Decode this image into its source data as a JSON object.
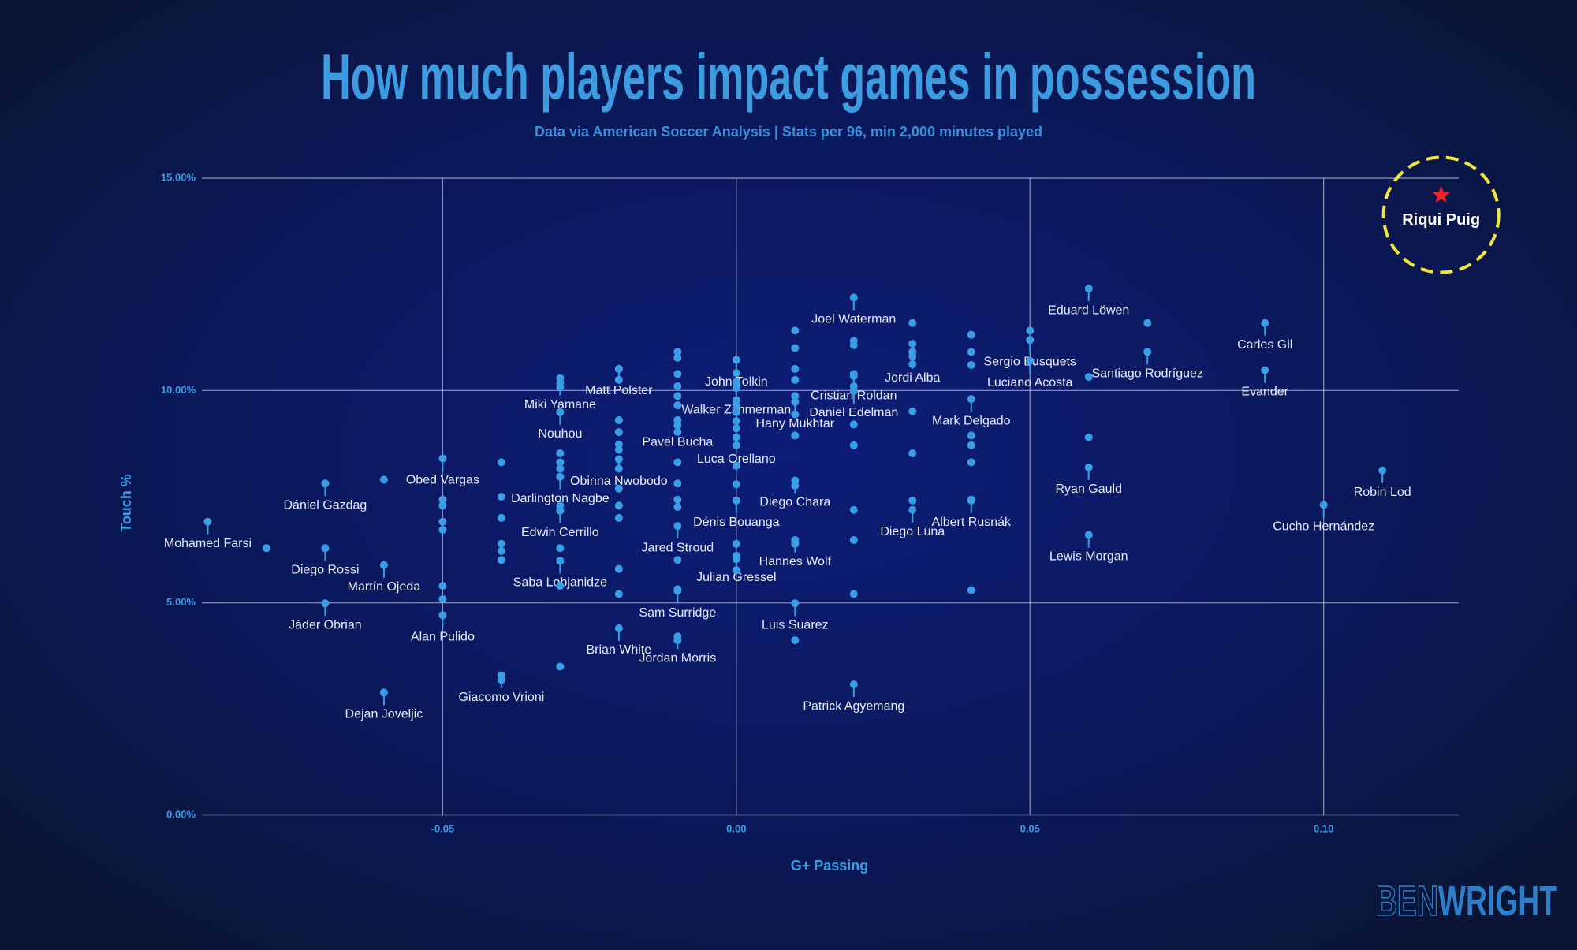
{
  "chart_data": {
    "type": "scatter",
    "title": "How much players impact games in possession",
    "subtitle": "Data via American Soccer Analysis | Stats per 96, min 2,000 minutes played",
    "x_label": "G+ Passing",
    "y_label": "Touch %",
    "color": "#3a9ee6",
    "xlim": [
      -0.091,
      0.123
    ],
    "ylim": [
      0,
      15
    ],
    "xticks": [
      {
        "value": -0.05,
        "label": "-0.05"
      },
      {
        "value": 0,
        "label": "0.00"
      },
      {
        "value": 0.05,
        "label": "0.05"
      },
      {
        "value": 0.1,
        "label": "0.10"
      }
    ],
    "yticks": [
      {
        "value": 0,
        "label": "0.00%"
      },
      {
        "value": 5,
        "label": "5.00%"
      },
      {
        "value": 10,
        "label": "10.00%"
      },
      {
        "value": 15,
        "label": "15.00%"
      }
    ],
    "grid": true,
    "x": [
      -0.09,
      -0.07,
      -0.07,
      -0.07,
      -0.06,
      -0.05,
      -0.06,
      -0.05,
      -0.04,
      -0.03,
      -0.03,
      -0.03,
      -0.03,
      -0.03,
      -0.02,
      -0.02,
      -0.02,
      -0.01,
      -0.01,
      -0.01,
      -0.01,
      0,
      0,
      0,
      0,
      0,
      0.01,
      0.01,
      0.01,
      0.01,
      0.02,
      0.02,
      0.02,
      0.02,
      0.03,
      0.03,
      0.04,
      0.04,
      0.05,
      0.05,
      0.06,
      0.07,
      0.06,
      0.06,
      0.09,
      0.09,
      0.11,
      0.1,
      -0.08,
      -0.06,
      -0.05,
      -0.05,
      -0.05,
      -0.05,
      -0.05,
      -0.05,
      -0.04,
      -0.04,
      -0.04,
      -0.04,
      -0.04,
      -0.04,
      -0.04,
      -0.03,
      -0.03,
      -0.03,
      -0.03,
      -0.03,
      -0.03,
      -0.03,
      -0.03,
      -0.03,
      -0.02,
      -0.02,
      -0.02,
      -0.02,
      -0.02,
      -0.02,
      -0.02,
      -0.02,
      -0.02,
      -0.02,
      -0.02,
      -0.02,
      -0.01,
      -0.01,
      -0.01,
      -0.01,
      -0.01,
      -0.01,
      -0.01,
      -0.01,
      -0.01,
      -0.01,
      -0.01,
      -0.01,
      -0.01,
      -0.01,
      -0.01,
      -0.01,
      0,
      0,
      0,
      0,
      0,
      0,
      0,
      0,
      0,
      0,
      0,
      0,
      0,
      0.01,
      0.01,
      0.01,
      0.01,
      0.01,
      0.01,
      0.01,
      0.01,
      0.01,
      0.01,
      0.02,
      0.02,
      0.02,
      0.02,
      0.02,
      0.02,
      0.02,
      0.02,
      0.02,
      0.03,
      0.03,
      0.03,
      0.03,
      0.03,
      0.03,
      0.03,
      0.04,
      0.04,
      0.04,
      0.04,
      0.04,
      0.04,
      0.04,
      0.04,
      0.05,
      0.06,
      0.06,
      0.07
    ],
    "values": [
      6.91,
      7.81,
      6.29,
      4.99,
      5.89,
      8.4,
      2.89,
      4.71,
      3.29,
      7.97,
      7.17,
      5.99,
      10.18,
      9.49,
      10.51,
      8.38,
      4.4,
      9.3,
      6.81,
      5.28,
      4.21,
      10.06,
      10.72,
      8.9,
      7.41,
      6.11,
      9.73,
      7.88,
      6.48,
      4.99,
      12.19,
      10.39,
      9.99,
      3.08,
      10.81,
      7.19,
      7.41,
      9.8,
      11.19,
      10.7,
      12.4,
      10.91,
      8.19,
      6.6,
      11.59,
      10.48,
      8.12,
      7.31,
      6.29,
      7.9,
      7.43,
      7.29,
      6.91,
      6.72,
      5.4,
      5.09,
      8.31,
      7.5,
      7.0,
      6.39,
      6.22,
      6.01,
      3.19,
      10.29,
      10.08,
      8.52,
      8.31,
      8.16,
      7.29,
      6.29,
      5.4,
      3.5,
      10.51,
      10.25,
      9.3,
      9.02,
      8.73,
      8.61,
      8.16,
      7.69,
      7.29,
      7.0,
      5.8,
      5.21,
      10.91,
      10.77,
      10.39,
      10.1,
      9.87,
      9.65,
      9.3,
      9.18,
      9.02,
      8.31,
      7.81,
      7.43,
      7.26,
      6.01,
      5.32,
      4.12,
      10.41,
      10.2,
      9.77,
      9.65,
      9.49,
      9.28,
      9.11,
      8.71,
      8.23,
      7.79,
      6.39,
      6.03,
      5.77,
      11.41,
      11.0,
      10.51,
      10.25,
      9.87,
      9.44,
      8.94,
      7.76,
      6.39,
      4.12,
      11.17,
      11.07,
      10.34,
      10.1,
      9.2,
      8.71,
      7.19,
      6.48,
      5.21,
      11.59,
      11.1,
      10.91,
      10.62,
      9.51,
      8.52,
      7.41,
      11.31,
      10.91,
      10.6,
      8.94,
      8.71,
      8.31,
      7.43,
      5.3,
      11.41,
      10.32,
      8.9,
      11.59
    ],
    "labels": [
      "Mohamed Farsi",
      "Dániel Gazdag",
      "Diego Rossi",
      "Jáder Obrian",
      "Martín Ojeda",
      "Obed Vargas",
      "Dejan Joveljic",
      "Alan Pulido",
      "Giacomo Vrioni",
      "Darlington Nagbe",
      "Edwin Cerrillo",
      "Saba Lobjanidze",
      "Miki Yamane",
      "Nouhou",
      "Matt Polster",
      "Obinna Nwobodo",
      "Brian White",
      "Pavel Bucha",
      "Jared Stroud",
      "Sam Surridge",
      "Jordan Morris",
      "Walker Zimmerman",
      "John Tolkin",
      "Luca Orellano",
      "Dénis Bouanga",
      "Julian Gressel",
      "Hany Mukhtar",
      "Diego Chara",
      "Hannes Wolf",
      "Luis Suárez",
      "Joel Waterman",
      "Cristian Roldan",
      "Daniel Edelman",
      "Patrick Agyemang",
      "Jordi Alba",
      "Diego Luna",
      "Albert Rusnák",
      "Mark Delgado",
      "Sergio Busquets",
      "Luciano Acosta",
      "Eduard Löwen",
      "Santiago Rodríguez",
      "Ryan Gauld",
      "Lewis Morgan",
      "Carles Gil",
      "Evander",
      "Robin Lod",
      "Cucho Hernández",
      null,
      null,
      null,
      null,
      null,
      null,
      null,
      null,
      null,
      null,
      null,
      null,
      null,
      null,
      null,
      null,
      null,
      null,
      null,
      null,
      null,
      null,
      null,
      null,
      null,
      null,
      null,
      null,
      null,
      null,
      null,
      null,
      null,
      null,
      null,
      null,
      null,
      null,
      null,
      null,
      null,
      null,
      null,
      null,
      null,
      null,
      null,
      null,
      null,
      null,
      null,
      null,
      null,
      null,
      null,
      null,
      null,
      null,
      null,
      null,
      null,
      null,
      null,
      null,
      null,
      null,
      null,
      null,
      null,
      null,
      null,
      null,
      null,
      null,
      null,
      null,
      null,
      null,
      null,
      null,
      null,
      null,
      null,
      null,
      null,
      null,
      null,
      null,
      null,
      null,
      null,
      null,
      null,
      null,
      null,
      null,
      null,
      null,
      null,
      null,
      null,
      null
    ],
    "highlight": {
      "x": 0.12,
      "y": 14.6,
      "label": "Riqui Puig",
      "color": "#e8262b",
      "ring_color": "#f0e63c"
    },
    "credit": {
      "first": "BEN",
      "second": "WRIGHT"
    }
  }
}
